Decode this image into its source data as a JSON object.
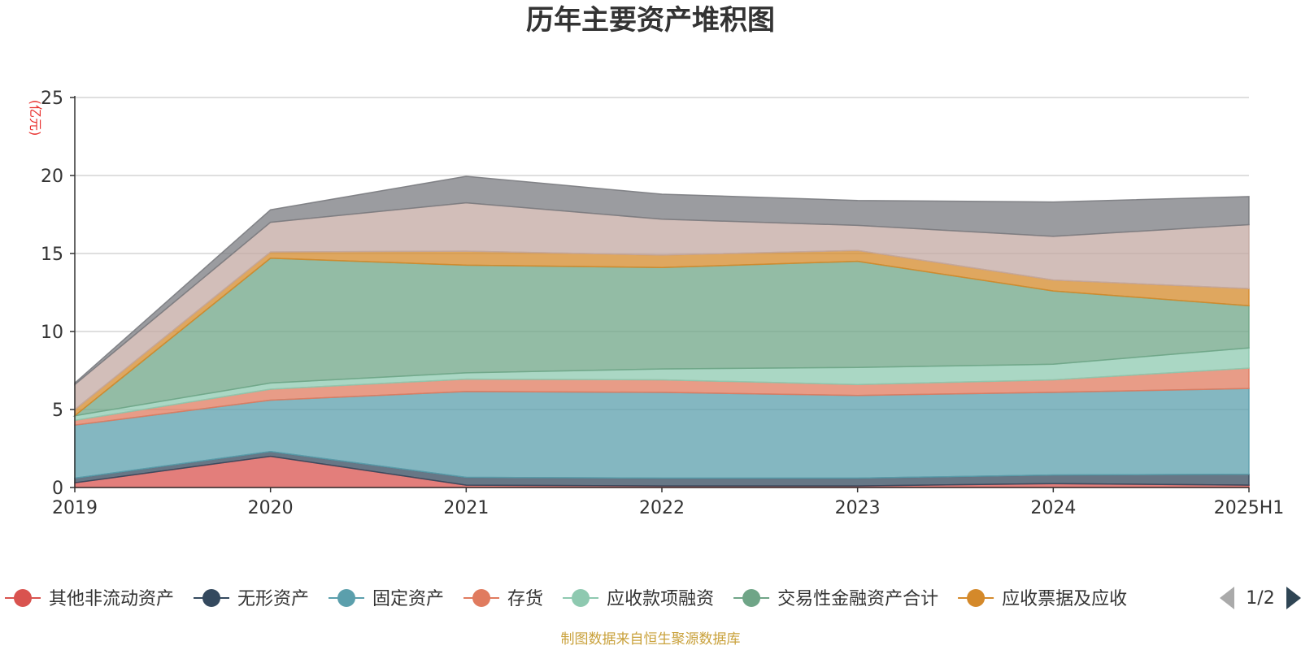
{
  "chart_data": {
    "type": "area",
    "stacked": true,
    "title": "历年主要资产堆积图",
    "unit_label": "(亿元)",
    "x": [
      "2019",
      "2020",
      "2021",
      "2022",
      "2023",
      "2024",
      "2025H1"
    ],
    "ylim": [
      0,
      25
    ],
    "yticks": [
      0,
      5,
      10,
      15,
      20,
      25
    ],
    "grid": true,
    "legend_position": "bottom",
    "series": [
      {
        "name": "其他非流动资产",
        "color": "#d9534f",
        "values": [
          0.3,
          2.0,
          0.15,
          0.1,
          0.1,
          0.25,
          0.15
        ]
      },
      {
        "name": "无形资产",
        "color": "#34495e",
        "values": [
          0.3,
          0.3,
          0.5,
          0.5,
          0.5,
          0.55,
          0.7
        ]
      },
      {
        "name": "固定资产",
        "color": "#5b9fac",
        "values": [
          3.4,
          3.3,
          5.5,
          5.5,
          5.3,
          5.3,
          5.5
        ]
      },
      {
        "name": "存货",
        "color": "#e07b5f",
        "values": [
          0.3,
          0.7,
          0.8,
          0.8,
          0.7,
          0.8,
          1.3
        ]
      },
      {
        "name": "应收款项融资",
        "color": "#8ec9b0",
        "values": [
          0.3,
          0.4,
          0.4,
          0.7,
          1.1,
          1.0,
          1.3
        ]
      },
      {
        "name": "交易性金融资产合计",
        "color": "#6fa587",
        "values": [
          0.0,
          8.0,
          6.9,
          6.5,
          6.8,
          4.7,
          2.7
        ]
      },
      {
        "name": "应收票据及应收",
        "color": "#d4892a",
        "values": [
          0.4,
          0.4,
          0.9,
          0.8,
          0.7,
          0.7,
          1.1
        ]
      },
      {
        "name": "",
        "color": "#c3a8a2",
        "values": [
          1.6,
          1.9,
          3.1,
          2.3,
          1.6,
          2.8,
          4.1
        ]
      },
      {
        "name": "",
        "color": "#7a7b80",
        "values": [
          0.1,
          0.8,
          1.7,
          1.6,
          1.6,
          2.2,
          1.8
        ]
      }
    ]
  },
  "legend": {
    "page_indicator": "1/2",
    "prev_icon": "triangle-left-icon",
    "next_icon": "triangle-right-icon"
  },
  "footer": {
    "source": "制图数据来自恒生聚源数据库"
  }
}
